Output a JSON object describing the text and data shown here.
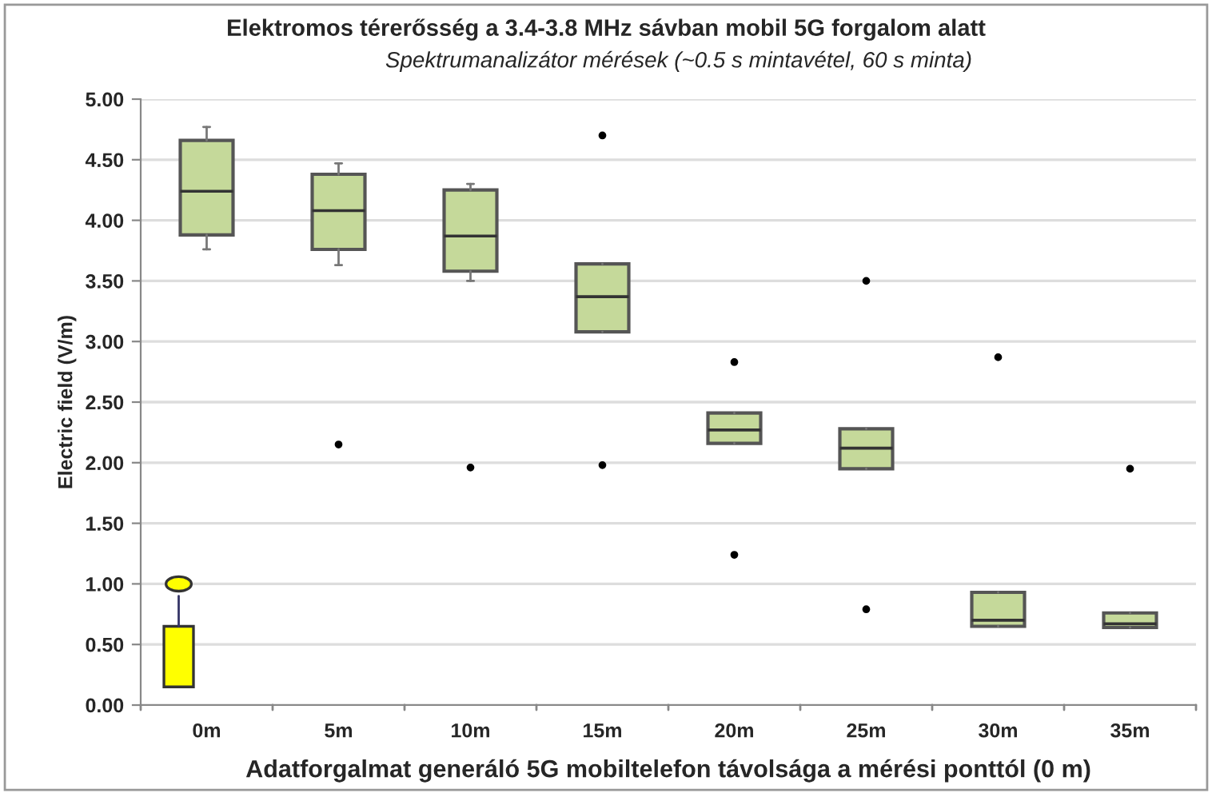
{
  "chart_data": {
    "type": "box",
    "title": "Elektromos térerősség a 3.4-3.8 MHz sávban mobil 5G forgalom alatt",
    "subtitle": "Spektrumanalizátor mérések (~0.5 s mintavétel, 60 s minta)",
    "xlabel": "Adatforgalmat generáló 5G mobiltelefon távolsága a mérési ponttól (0 m)",
    "ylabel": "Electric field (V/m)",
    "categories": [
      "0m",
      "5m",
      "10m",
      "15m",
      "20m",
      "25m",
      "30m",
      "35m"
    ],
    "color": "#c5d99a",
    "boxes": [
      {
        "low": 3.76,
        "q1": 3.88,
        "median": 4.24,
        "q3": 4.66,
        "high": 4.77
      },
      {
        "low": 3.63,
        "q1": 3.76,
        "median": 4.08,
        "q3": 4.38,
        "high": 4.47,
        "outliers": [
          2.15
        ]
      },
      {
        "low": 3.5,
        "q1": 3.58,
        "median": 3.87,
        "q3": 4.25,
        "high": 4.3,
        "outliers": [
          1.96
        ]
      },
      {
        "low": 3.08,
        "q1": 3.08,
        "median": 3.37,
        "q3": 3.64,
        "high": 3.64,
        "outliers": [
          4.7,
          1.98
        ]
      },
      {
        "low": 2.16,
        "q1": 2.16,
        "median": 2.27,
        "q3": 2.41,
        "high": 2.41,
        "outliers": [
          2.83,
          1.24
        ]
      },
      {
        "low": 1.95,
        "q1": 1.95,
        "median": 2.12,
        "q3": 2.28,
        "high": 2.28,
        "outliers": [
          3.5,
          0.79
        ]
      },
      {
        "low": 0.65,
        "q1": 0.65,
        "median": 0.7,
        "q3": 0.93,
        "high": 0.93,
        "outliers": [
          2.87
        ]
      },
      {
        "low": 0.64,
        "q1": 0.64,
        "median": 0.67,
        "q3": 0.76,
        "high": 0.76,
        "outliers": [
          1.95
        ]
      }
    ],
    "ylim": [
      0,
      5
    ],
    "yticks": [
      {
        "value": 0,
        "label": "0.00"
      },
      {
        "value": 0.5,
        "label": "0.50"
      },
      {
        "value": 1,
        "label": "1.00"
      },
      {
        "value": 1.5,
        "label": "1.50"
      },
      {
        "value": 2,
        "label": "2.00"
      },
      {
        "value": 2.5,
        "label": "2.50"
      },
      {
        "value": 3,
        "label": "3.00"
      },
      {
        "value": 3.5,
        "label": "3.50"
      },
      {
        "value": 4,
        "label": "4.00"
      },
      {
        "value": 4.5,
        "label": "4.50"
      },
      {
        "value": 5,
        "label": "5.00"
      }
    ],
    "grid": "y"
  }
}
